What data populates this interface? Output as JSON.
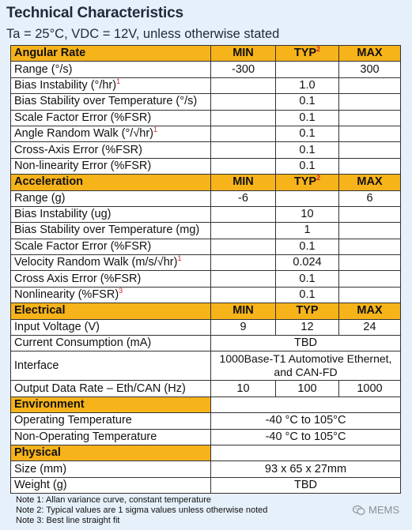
{
  "title": "Technical Characteristics",
  "subtitle": "Ta = 25°C, VDC = 12V, unless otherwise stated",
  "sections": [
    {
      "header": {
        "label": "Angular Rate",
        "min": "MIN",
        "typ": "TYP",
        "typ_note": "2",
        "max": "MAX"
      },
      "rows": [
        {
          "label": "Range (°/s)",
          "note": "",
          "min": "-300",
          "typ": "",
          "max": "300"
        },
        {
          "label": "Bias Instability (°/hr)",
          "note": "1",
          "min": "",
          "typ": "1.0",
          "max": ""
        },
        {
          "label": "Bias Stability over Temperature (°/s)",
          "note": "",
          "min": "",
          "typ": "0.1",
          "max": ""
        },
        {
          "label": "Scale Factor Error (%FSR)",
          "note": "",
          "min": "",
          "typ": "0.1",
          "max": ""
        },
        {
          "label": "Angle Random Walk (°/√hr)",
          "note": "1",
          "min": "",
          "typ": "0.1",
          "max": ""
        },
        {
          "label": "Cross-Axis Error (%FSR)",
          "note": "",
          "min": "",
          "typ": "0.1",
          "max": ""
        },
        {
          "label": "Non-linearity Error (%FSR)",
          "note": "",
          "min": "",
          "typ": "0.1",
          "max": ""
        }
      ]
    },
    {
      "header": {
        "label": "Acceleration",
        "min": "MIN",
        "typ": "TYP",
        "typ_note": "2",
        "max": "MAX"
      },
      "rows": [
        {
          "label": "Range (g)",
          "note": "",
          "min": "-6",
          "typ": "",
          "max": "6"
        },
        {
          "label": "Bias Instability (ug)",
          "note": "",
          "min": "",
          "typ": "10",
          "max": ""
        },
        {
          "label": "Bias Stability over Temperature (mg)",
          "note": "",
          "min": "",
          "typ": "1",
          "max": ""
        },
        {
          "label": "Scale Factor Error (%FSR)",
          "note": "",
          "min": "",
          "typ": "0.1",
          "max": ""
        },
        {
          "label": "Velocity Random Walk (m/s/√hr)",
          "note": "1",
          "min": "",
          "typ": "0.024",
          "max": ""
        },
        {
          "label": "Cross Axis Error (%FSR)",
          "note": "",
          "min": "",
          "typ": "0.1",
          "max": ""
        },
        {
          "label": "Nonlinearity (%FSR)",
          "note": "3",
          "min": "",
          "typ": "0.1",
          "max": ""
        }
      ]
    },
    {
      "header": {
        "label": "Electrical",
        "min": "MIN",
        "typ": "TYP",
        "typ_note": "",
        "max": "MAX"
      },
      "rows": [
        {
          "label": "Input Voltage (V)",
          "note": "",
          "min": "9",
          "typ": "12",
          "max": "24"
        },
        {
          "label": "Current Consumption (mA)",
          "note": "",
          "merged": "TBD"
        },
        {
          "label": "Interface",
          "note": "",
          "merged": "1000Base-T1 Automotive Ethernet, and CAN-FD"
        },
        {
          "label": "Output Data Rate – Eth/CAN (Hz)",
          "note": "",
          "min": "10",
          "typ": "100",
          "max": "1000"
        }
      ]
    },
    {
      "header": {
        "label": "Environment"
      },
      "rows": [
        {
          "label": "Operating Temperature",
          "note": "",
          "merged": "-40 °C to 105°C"
        },
        {
          "label": "Non-Operating Temperature",
          "note": "",
          "merged": "-40 °C to 105°C"
        }
      ]
    },
    {
      "header": {
        "label": "Physical"
      },
      "rows": [
        {
          "label": "Size (mm)",
          "note": "",
          "merged": "93 x 65 x 27mm"
        },
        {
          "label": "Weight (g)",
          "note": "",
          "merged": "TBD"
        }
      ]
    }
  ],
  "notes": [
    "Note 1: Allan variance curve, constant temperature",
    "Note 2: Typical values are 1 sigma values unless otherwise noted",
    "Note 3: Best line straight fit"
  ],
  "watermark": "MEMS",
  "colors": {
    "header_bg": "#f7b31a",
    "page_bg": "#e6f0fa",
    "note_red": "#d0212a"
  }
}
